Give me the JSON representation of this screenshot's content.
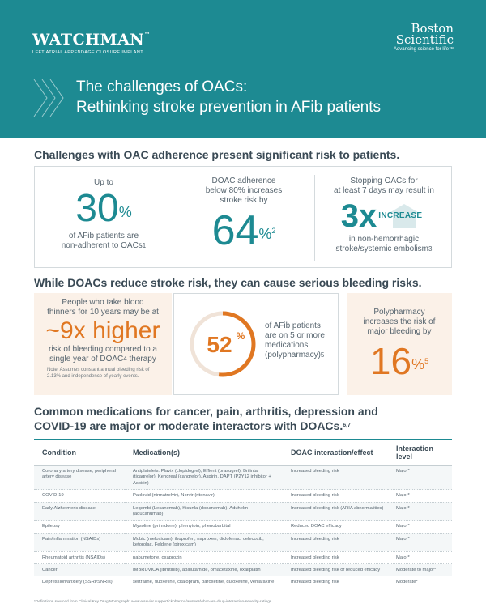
{
  "header": {
    "brand": "WATCHMAN",
    "brand_tm": "™",
    "brand_tagline": "LEFT ATRIAL APPENDAGE CLOSURE IMPLANT",
    "company_line1": "Boston",
    "company_line2": "Scientific",
    "company_tagline": "Advancing science for life™",
    "title_line1": "The challenges of OACs:",
    "title_line2": "Rethinking stroke prevention in AFib patients",
    "colors": {
      "teal": "#1d8a92",
      "orange": "#e07722"
    }
  },
  "section1": {
    "heading": "Challenges with OAC adherence present significant risk to patients.",
    "stat1": {
      "pre": "Up to",
      "value": "30",
      "unit": "%",
      "post_line1": "of AFib patients are",
      "post_line2": "non-adherent to OACs",
      "ref": "1"
    },
    "stat2": {
      "line1": "DOAC adherence",
      "line2": "below 80% increases",
      "line3": "stroke risk by",
      "value": "64",
      "unit": "%",
      "ref": "2"
    },
    "stat3": {
      "line1": "Stopping OACs for",
      "line2": "at least 7 days may result in",
      "value": "3x",
      "badge": "INCREASE",
      "post_line1": "in non-hemorrhagic",
      "post_line2": "stroke/systemic embolism",
      "ref": "3"
    }
  },
  "section2": {
    "heading": "While DOACs reduce stroke risk, they can cause serious bleeding risks.",
    "stat1": {
      "line1": "People who take blood",
      "line2": "thinners for 10 years may be at",
      "value": "~9x higher",
      "post_line1": "risk of bleeding compared to a",
      "post_line2": "single year of DOAC",
      "ref": "4",
      "post_line2_end": " therapy",
      "note_line1": "Note: Assumes constant annual bleeding risk of",
      "note_line2": "2.13% and independence of yearly events."
    },
    "stat2": {
      "value": "52",
      "unit": "%",
      "progress_percent": 52,
      "line1": "of AFib patients",
      "line2": "are on 5 or more",
      "line3": "medications",
      "line4": "(polypharmacy)",
      "ref": "5"
    },
    "stat3": {
      "line1": "Polypharmacy",
      "line2": "increases the risk of",
      "line3": "major bleeding by",
      "value": "16",
      "unit": "%",
      "ref": "5"
    }
  },
  "section3": {
    "heading_line1": "Common medications for cancer, pain, arthritis, depression and",
    "heading_line2": "COVID-19 are major or moderate interactors with DOACs.",
    "heading_ref": "6,7",
    "columns": [
      "Condition",
      "Medication(s)",
      "DOAC interaction/effect",
      "Interaction level"
    ],
    "rows": [
      [
        "Coronary artery disease, peripheral artery disease",
        "Antiplatelets: Plavix (clopidogrel), Effient (prasugrel), Brilinta (ticagrelor), Kengreal (cangrelor), Aspirin, DAPT (P2Y12 inhibitor + Aspirin)",
        "Increased bleeding risk",
        "Major*"
      ],
      [
        "COVID-19",
        "Paxlovid (nirmatrelvir), Norvir (ritonavir)",
        "Increased bleeding risk",
        "Major*"
      ],
      [
        "Early Alzheimer's disease",
        "Leqembi (Lecanemab), Kisunla (donanemab), Aduhelm (aducanumab)",
        "Increased bleeding risk (ARIA abnormalities)",
        "Major*"
      ],
      [
        "Epilepsy",
        "Mysoline (primidone), phenytoin, phenobarbital",
        "Reduced DOAC efficacy",
        "Major*"
      ],
      [
        "Pain/inflammation (NSAIDs)",
        "Mobic (meloxicam), ibuprofen, naproxen, diclofenac, celecoxib, ketorolac, Feldene (piroxicam)",
        "Increased bleeding risk",
        "Major*"
      ],
      [
        "Rheumatoid arthritis (NSAIDs)",
        "nabumetone, oxaprozin",
        "Increased bleeding risk",
        "Major*"
      ],
      [
        "Cancer",
        "IMBRUVICA (ibrutinib), apalutamide, omacetaxine, oxaliplatin",
        "Increased bleeding risk or reduced efficacy",
        "Moderate to major*"
      ],
      [
        "Depression/anxiety (SSRI/SNRIs)",
        "sertraline, fluoxetine, citalopram, paroxetine, duloxetine, venlafaxine",
        "Increased bleeding risk",
        "Moderate*"
      ]
    ],
    "footnote": "*Definitions sourced from Clinical Key Drug Monograph: www.elsevier.support/ckpharma/answer/what-are-drug-interaction-severity-ratings"
  }
}
